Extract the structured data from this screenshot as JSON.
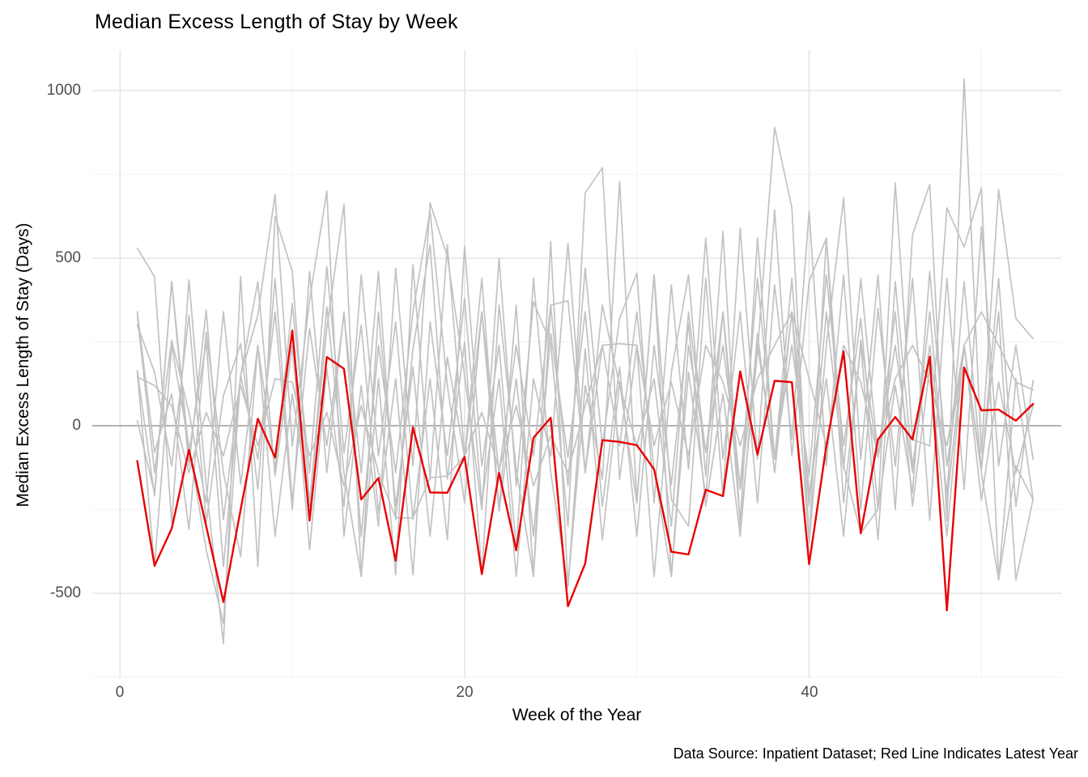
{
  "title": "Median Excess Length of Stay by Week",
  "caption": "Data Source: Inpatient Dataset; Red Line Indicates Latest Year",
  "x_axis": {
    "label": "Week of the Year",
    "ticks": [
      "0",
      "20",
      "40"
    ]
  },
  "y_axis": {
    "label": "Median Excess Length of Stay (Days)",
    "ticks": [
      "1000",
      "500",
      "0",
      "-500"
    ]
  },
  "colors": {
    "latest_year_line": "#e90000",
    "prior_year_line": "#c2c2c2",
    "zero_line": "#b3b3b3",
    "grid_major": "#e8e8e8",
    "grid_minor": "#f4f4f4",
    "axis_text": "#4d4d4d",
    "text": "#000000",
    "background": "#ffffff"
  },
  "chart_data": {
    "type": "line",
    "title": "Median Excess Length of Stay by Week",
    "xlabel": "Week of the Year",
    "ylabel": "Median Excess Length of Stay (Days)",
    "caption": "Data Source: Inpatient Dataset; Red Line Indicates Latest Year",
    "x": [
      1,
      2,
      3,
      4,
      5,
      6,
      7,
      8,
      9,
      10,
      11,
      12,
      13,
      14,
      15,
      16,
      17,
      18,
      19,
      20,
      21,
      22,
      23,
      24,
      25,
      26,
      27,
      28,
      29,
      30,
      31,
      32,
      33,
      34,
      35,
      36,
      37,
      38,
      39,
      40,
      41,
      42,
      43,
      44,
      45,
      46,
      47,
      48,
      49,
      50,
      51,
      52,
      53
    ],
    "xlim": [
      -1.6,
      54.6
    ],
    "ylim": [
      -734,
      1119
    ],
    "x_ticks": [
      0,
      20,
      40
    ],
    "x_minor_ticks": [
      10,
      30,
      50
    ],
    "y_ticks": [
      1000,
      500,
      0,
      -500
    ],
    "y_minor_ticks": [
      750,
      250,
      -250,
      -750
    ],
    "grid": true,
    "legend_position": "none",
    "zero_line": 0,
    "series": [
      {
        "name": "prior_year_1",
        "role": "prior",
        "color": "#c2c2c2",
        "width": 1.7,
        "values": [
          165,
          -210,
          430,
          -80,
          250,
          -420,
          150,
          330,
          690,
          -60,
          375,
          700,
          -330,
          120,
          -300,
          470,
          -120,
          665,
          505,
          150,
          -250,
          500,
          -180,
          370,
          245,
          -300,
          695,
          770,
          -160,
          240,
          -450,
          160,
          450,
          -150,
          580,
          -300,
          220,
          890,
          650,
          -350,
          240,
          680,
          -100,
          450,
          -250,
          570,
          720,
          -283,
          1035,
          -80,
          705,
          320,
          260
        ]
      },
      {
        "name": "prior_year_2",
        "role": "prior",
        "color": "#c2c2c2",
        "width": 1.7,
        "values": [
          530,
          445,
          -290,
          435,
          -180,
          -650,
          445,
          -420,
          625,
          460,
          -230,
          290,
          660,
          -450,
          140,
          -445,
          480,
          -160,
          540,
          -90,
          440,
          -250,
          360,
          -450,
          550,
          -480,
          120,
          -160,
          729,
          -230,
          450,
          -220,
          -300,
          440,
          -210,
          590,
          -100,
          645,
          -90,
          430,
          560,
          -120,
          -320,
          -250,
          725,
          -41,
          -60,
          650,
          533,
          710,
          -460,
          -120,
          -220
        ]
      },
      {
        "name": "prior_year_3",
        "role": "prior",
        "color": "#c2c2c2",
        "width": 1.7,
        "values": [
          340,
          -80,
          95,
          -310,
          280,
          -140,
          -390,
          240,
          -130,
          365,
          -140,
          475,
          -80,
          300,
          -260,
          140,
          -445,
          310,
          -90,
          380,
          -230,
          140,
          -450,
          140,
          -90,
          545,
          -140,
          360,
          120,
          -60,
          140,
          -300,
          340,
          -80,
          240,
          -180,
          440,
          -100,
          240,
          -150,
          450,
          -60,
          320,
          -250,
          120,
          -200,
          460,
          -120,
          240,
          -222,
          130,
          -140,
          60
        ]
      },
      {
        "name": "prior_year_4",
        "role": "prior",
        "color": "#c2c2c2",
        "width": 1.7,
        "values": [
          300,
          160,
          -120,
          330,
          -290,
          90,
          245,
          -190,
          440,
          -230,
          290,
          -60,
          330,
          -140,
          460,
          -280,
          230,
          540,
          -160,
          250,
          -440,
          360,
          -130,
          -450,
          360,
          -180,
          470,
          -60,
          320,
          455,
          -230,
          420,
          -130,
          560,
          -100,
          340,
          -230,
          420,
          -40,
          640,
          -120,
          450,
          -250,
          350,
          -120,
          440,
          -283,
          440,
          -190,
          594,
          -120,
          240,
          -100
        ]
      },
      {
        "name": "prior_year_5",
        "role": "prior",
        "color": "#c2c2c2",
        "width": 1.7,
        "values": [
          160,
          -420,
          240,
          -60,
          -370,
          -590,
          150,
          430,
          -150,
          240,
          -370,
          170,
          -240,
          450,
          -90,
          310,
          -280,
          140,
          -340,
          535,
          -120,
          240,
          -370,
          440,
          -140,
          -480,
          230,
          -340,
          130,
          -230,
          450,
          -450,
          160,
          -210,
          340,
          -290,
          560,
          -100,
          340,
          -350,
          560,
          -230,
          240,
          -340,
          430,
          -120,
          240,
          -200,
          430,
          -130,
          340,
          -460,
          -220
        ]
      },
      {
        "name": "prior_year_6",
        "role": "prior",
        "color": "#c2c2c2",
        "width": 1.7,
        "values": [
          145,
          120,
          60,
          -140,
          40,
          -90,
          120,
          -60,
          140,
          130,
          -90,
          40,
          -180,
          60,
          -140,
          -275,
          -275,
          -155,
          -150,
          -90,
          40,
          -130,
          60,
          -180,
          -30,
          -140,
          60,
          240,
          245,
          240,
          -60,
          130,
          -90,
          240,
          130,
          -60,
          140,
          240,
          340,
          140,
          -60,
          240,
          130,
          -90,
          140,
          240,
          130,
          -60,
          240,
          340,
          240,
          130,
          107
        ]
      },
      {
        "name": "prior_year_7",
        "role": "prior",
        "color": "#c2c2c2",
        "width": 1.7,
        "values": [
          15,
          -200,
          430,
          -120,
          345,
          -280,
          150,
          -100,
          340,
          -250,
          460,
          -140,
          340,
          -330,
          240,
          -140,
          340,
          640,
          120,
          -230,
          340,
          -140,
          240,
          -90,
          360,
          373,
          -140,
          240,
          -60,
          340,
          -130,
          -450,
          240,
          -80,
          340,
          -190,
          240,
          -100,
          440,
          -240,
          340,
          -130,
          440,
          -90,
          240,
          -140,
          340,
          -230,
          240,
          -130,
          440,
          -240,
          135
        ]
      },
      {
        "name": "prior_year_8",
        "role": "prior",
        "color": "#c2c2c2",
        "width": 1.7,
        "values": [
          330,
          -140,
          255,
          40,
          -230,
          340,
          -175,
          240,
          -330,
          95,
          -240,
          355,
          -140,
          -450,
          340,
          -240,
          175,
          -330,
          205,
          -95,
          340,
          -255,
          140,
          -330,
          275,
          -95,
          340,
          -240,
          175,
          -330,
          240,
          -175,
          305,
          -240,
          95,
          -330,
          275,
          -140,
          340,
          -205,
          140,
          -330,
          255,
          -95,
          340,
          -240,
          175,
          -330,
          240,
          -140,
          -460,
          140,
          -220
        ]
      },
      {
        "name": "latest_year",
        "role": "latest",
        "color": "#e90000",
        "width": 2.4,
        "values": [
          -105,
          -418,
          -307,
          -72,
          -300,
          -526,
          -250,
          21,
          -95,
          284,
          -283,
          205,
          170,
          -220,
          -156,
          -403,
          -5,
          -199,
          -200,
          -93,
          -443,
          -140,
          -372,
          -36,
          24,
          -539,
          -411,
          -43,
          -48,
          -58,
          -130,
          -376,
          -384,
          -191,
          -210,
          162,
          -86,
          134,
          130,
          -413,
          -60,
          222,
          -321,
          -41,
          26,
          -41,
          206,
          -551,
          174,
          46,
          48,
          15,
          65
        ]
      }
    ]
  }
}
